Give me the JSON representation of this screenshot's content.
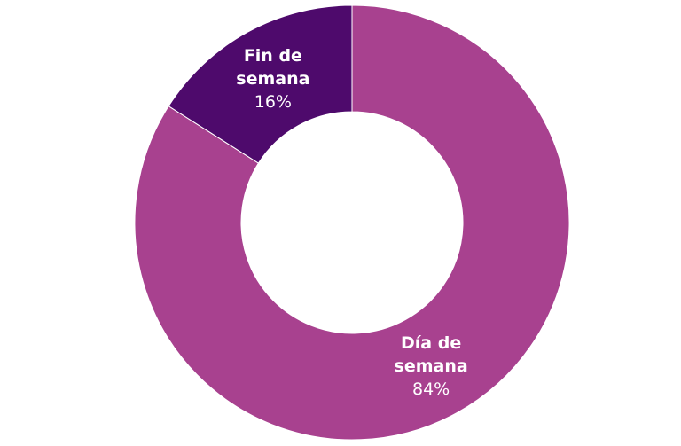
{
  "chart_data": {
    "type": "donut",
    "categories": [
      "Día de semana",
      "Fin de semana"
    ],
    "values": [
      84,
      16
    ],
    "value_labels": [
      "84%",
      "16%"
    ],
    "colors": [
      "#a8418f",
      "#4e0a6c"
    ]
  }
}
